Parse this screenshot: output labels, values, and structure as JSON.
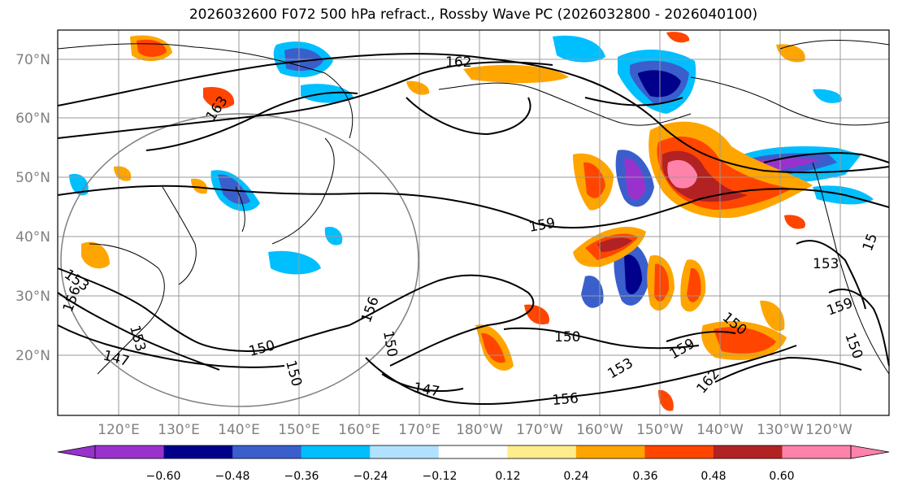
{
  "title": "2026032600 F072 500 hPa refract., Rossby Wave PC (2026032800 - 2026040100)",
  "lat_labels": [
    "70°N",
    "60°N",
    "50°N",
    "40°N",
    "30°N",
    "20°N"
  ],
  "lon_labels": [
    "120°E",
    "130°E",
    "140°E",
    "150°E",
    "160°E",
    "170°E",
    "180°W",
    "170°W",
    "160°W",
    "150°W",
    "140°W",
    "130°W",
    "120°W"
  ],
  "contour_labels": [
    "162",
    "163",
    "159",
    "153",
    "156",
    "153",
    "147",
    "150",
    "150",
    "156",
    "150",
    "147",
    "150",
    "156",
    "153",
    "159",
    "162",
    "150",
    "153",
    "159",
    "150",
    "15"
  ],
  "colorbar": {
    "ticks": [
      "−0.60",
      "−0.48",
      "−0.36",
      "−0.24",
      "−0.12",
      "0.12",
      "0.24",
      "0.36",
      "0.48",
      "0.60"
    ],
    "colors": [
      "#9932cc",
      "#00008b",
      "#3a5fcd",
      "#00bfff",
      "#b0e2ff",
      "#ffffff",
      "#ffec8b",
      "#ffa500",
      "#ff4500",
      "#b22222",
      "#ff82ab"
    ],
    "under_color": "#9932cc",
    "over_color": "#ff82ab"
  },
  "colors": {
    "axis_label": "#808080",
    "contour": "#000000",
    "grid": "#999999",
    "circle": "#808080"
  }
}
